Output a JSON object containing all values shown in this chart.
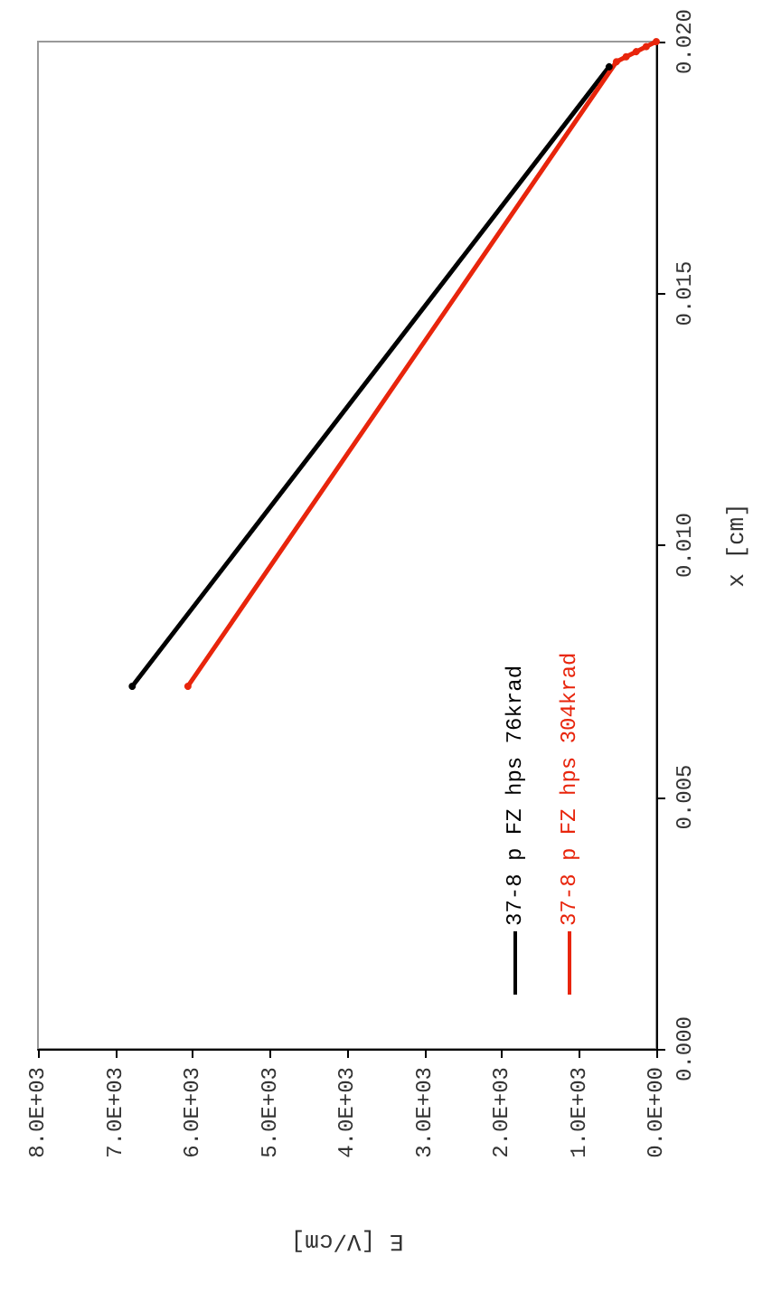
{
  "chart_data": {
    "type": "line",
    "xlabel": "E [V/cm]",
    "ylabel": "x [cm]",
    "xlim": [
      8000,
      0
    ],
    "xticks": [
      {
        "value": 0,
        "label": "0.0E+00"
      },
      {
        "value": 1000,
        "label": "1.0E+03"
      },
      {
        "value": 2000,
        "label": "2.0E+03"
      },
      {
        "value": 3000,
        "label": "3.0E+03"
      },
      {
        "value": 4000,
        "label": "4.0E+03"
      },
      {
        "value": 5000,
        "label": "5.0E+03"
      },
      {
        "value": 6000,
        "label": "6.0E+03"
      },
      {
        "value": 7000,
        "label": "7.0E+03"
      },
      {
        "value": 8000,
        "label": "8.0E+03"
      }
    ],
    "ylim": [
      0,
      0.02
    ],
    "yticks": [
      {
        "value": 0,
        "label": "0.000"
      },
      {
        "value": 0.005,
        "label": "0.005"
      },
      {
        "value": 0.01,
        "label": "0.010"
      },
      {
        "value": 0.015,
        "label": "0.015"
      },
      {
        "value": 0.02,
        "label": "0.020"
      }
    ],
    "series": [
      {
        "name": "37-8 p FZ hps 76krad",
        "color": "#000000",
        "x": [
          6780,
          610
        ],
        "values": [
          0.0072,
          0.0195
        ]
      },
      {
        "name": "37-8 p FZ hps 304krad",
        "color": "#e8250c",
        "x": [
          6060,
          515,
          390,
          260,
          130,
          0
        ],
        "values": [
          0.0072,
          0.0196,
          0.0197,
          0.0198,
          0.0199,
          0.02
        ]
      }
    ],
    "grid": false,
    "legend": "bottom right",
    "marker": "circle",
    "line_style": "solid"
  }
}
